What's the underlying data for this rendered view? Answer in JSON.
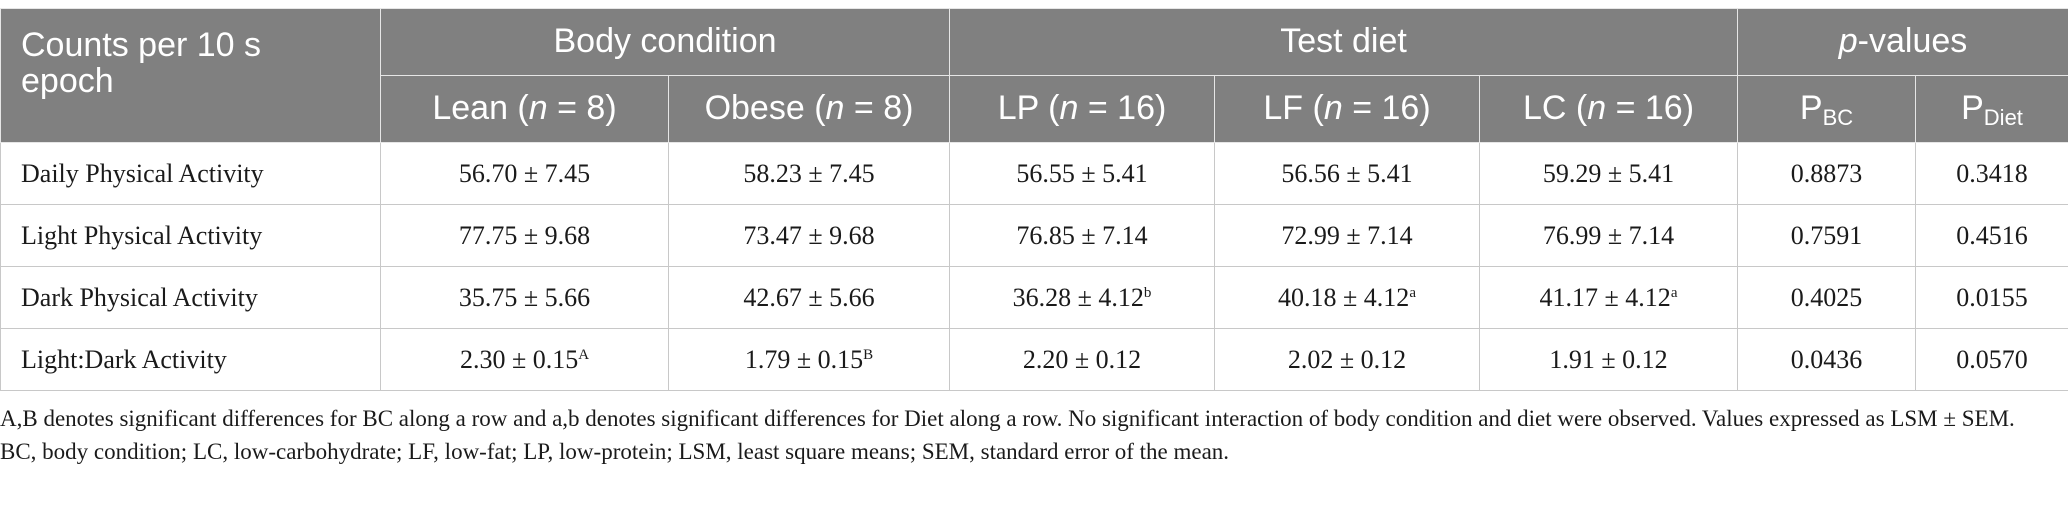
{
  "table": {
    "corner_header": "Counts per 10 s epoch",
    "group_headers": {
      "body_condition": "Body condition",
      "test_diet": "Test diet",
      "p_values": "p-values"
    },
    "sub_headers": {
      "lean": "Lean (n = 8)",
      "obese": "Obese (n = 8)",
      "lp": "LP (n = 16)",
      "lf": "LF (n = 16)",
      "lc": "LC (n = 16)",
      "p_bc_main": "P",
      "p_bc_sub": "BC",
      "p_diet_main": "P",
      "p_diet_sub": "Diet"
    },
    "rows": [
      {
        "label": "Daily Physical Activity",
        "lean": "56.70 ± 7.45",
        "lean_sup": "",
        "obese": "58.23 ± 7.45",
        "obese_sup": "",
        "lp": "56.55 ± 5.41",
        "lp_sup": "",
        "lf": "56.56 ± 5.41",
        "lf_sup": "",
        "lc": "59.29 ± 5.41",
        "lc_sup": "",
        "p_bc": "0.8873",
        "p_diet": "0.3418"
      },
      {
        "label": "Light Physical Activity",
        "lean": "77.75 ± 9.68",
        "lean_sup": "",
        "obese": "73.47 ± 9.68",
        "obese_sup": "",
        "lp": "76.85 ± 7.14",
        "lp_sup": "",
        "lf": "72.99 ± 7.14",
        "lf_sup": "",
        "lc": "76.99 ± 7.14",
        "lc_sup": "",
        "p_bc": "0.7591",
        "p_diet": "0.4516"
      },
      {
        "label": "Dark Physical Activity",
        "lean": "35.75 ± 5.66",
        "lean_sup": "",
        "obese": "42.67 ± 5.66",
        "obese_sup": "",
        "lp": "36.28 ± 4.12",
        "lp_sup": "b",
        "lf": "40.18 ± 4.12",
        "lf_sup": "a",
        "lc": "41.17 ± 4.12",
        "lc_sup": "a",
        "p_bc": "0.4025",
        "p_diet": "0.0155"
      },
      {
        "label": "Light:Dark Activity",
        "lean": "2.30 ± 0.15",
        "lean_sup": "A",
        "obese": "1.79 ± 0.15",
        "obese_sup": "B",
        "lp": "2.20 ± 0.12",
        "lp_sup": "",
        "lf": "2.02 ± 0.12",
        "lf_sup": "",
        "lc": "1.91 ± 0.12",
        "lc_sup": "",
        "p_bc": "0.0436",
        "p_diet": "0.0570"
      }
    ]
  },
  "footnotes": {
    "line1": "A,B denotes significant differences for BC along a row and a,b denotes significant differences for Diet along a row. No significant interaction of body condition and diet were observed. Values expressed as LSM ± SEM.",
    "line2": "BC, body condition; LC, low-carbohydrate; LF, low-fat; LP, low-protein; LSM, least square means; SEM, standard error of the mean."
  }
}
